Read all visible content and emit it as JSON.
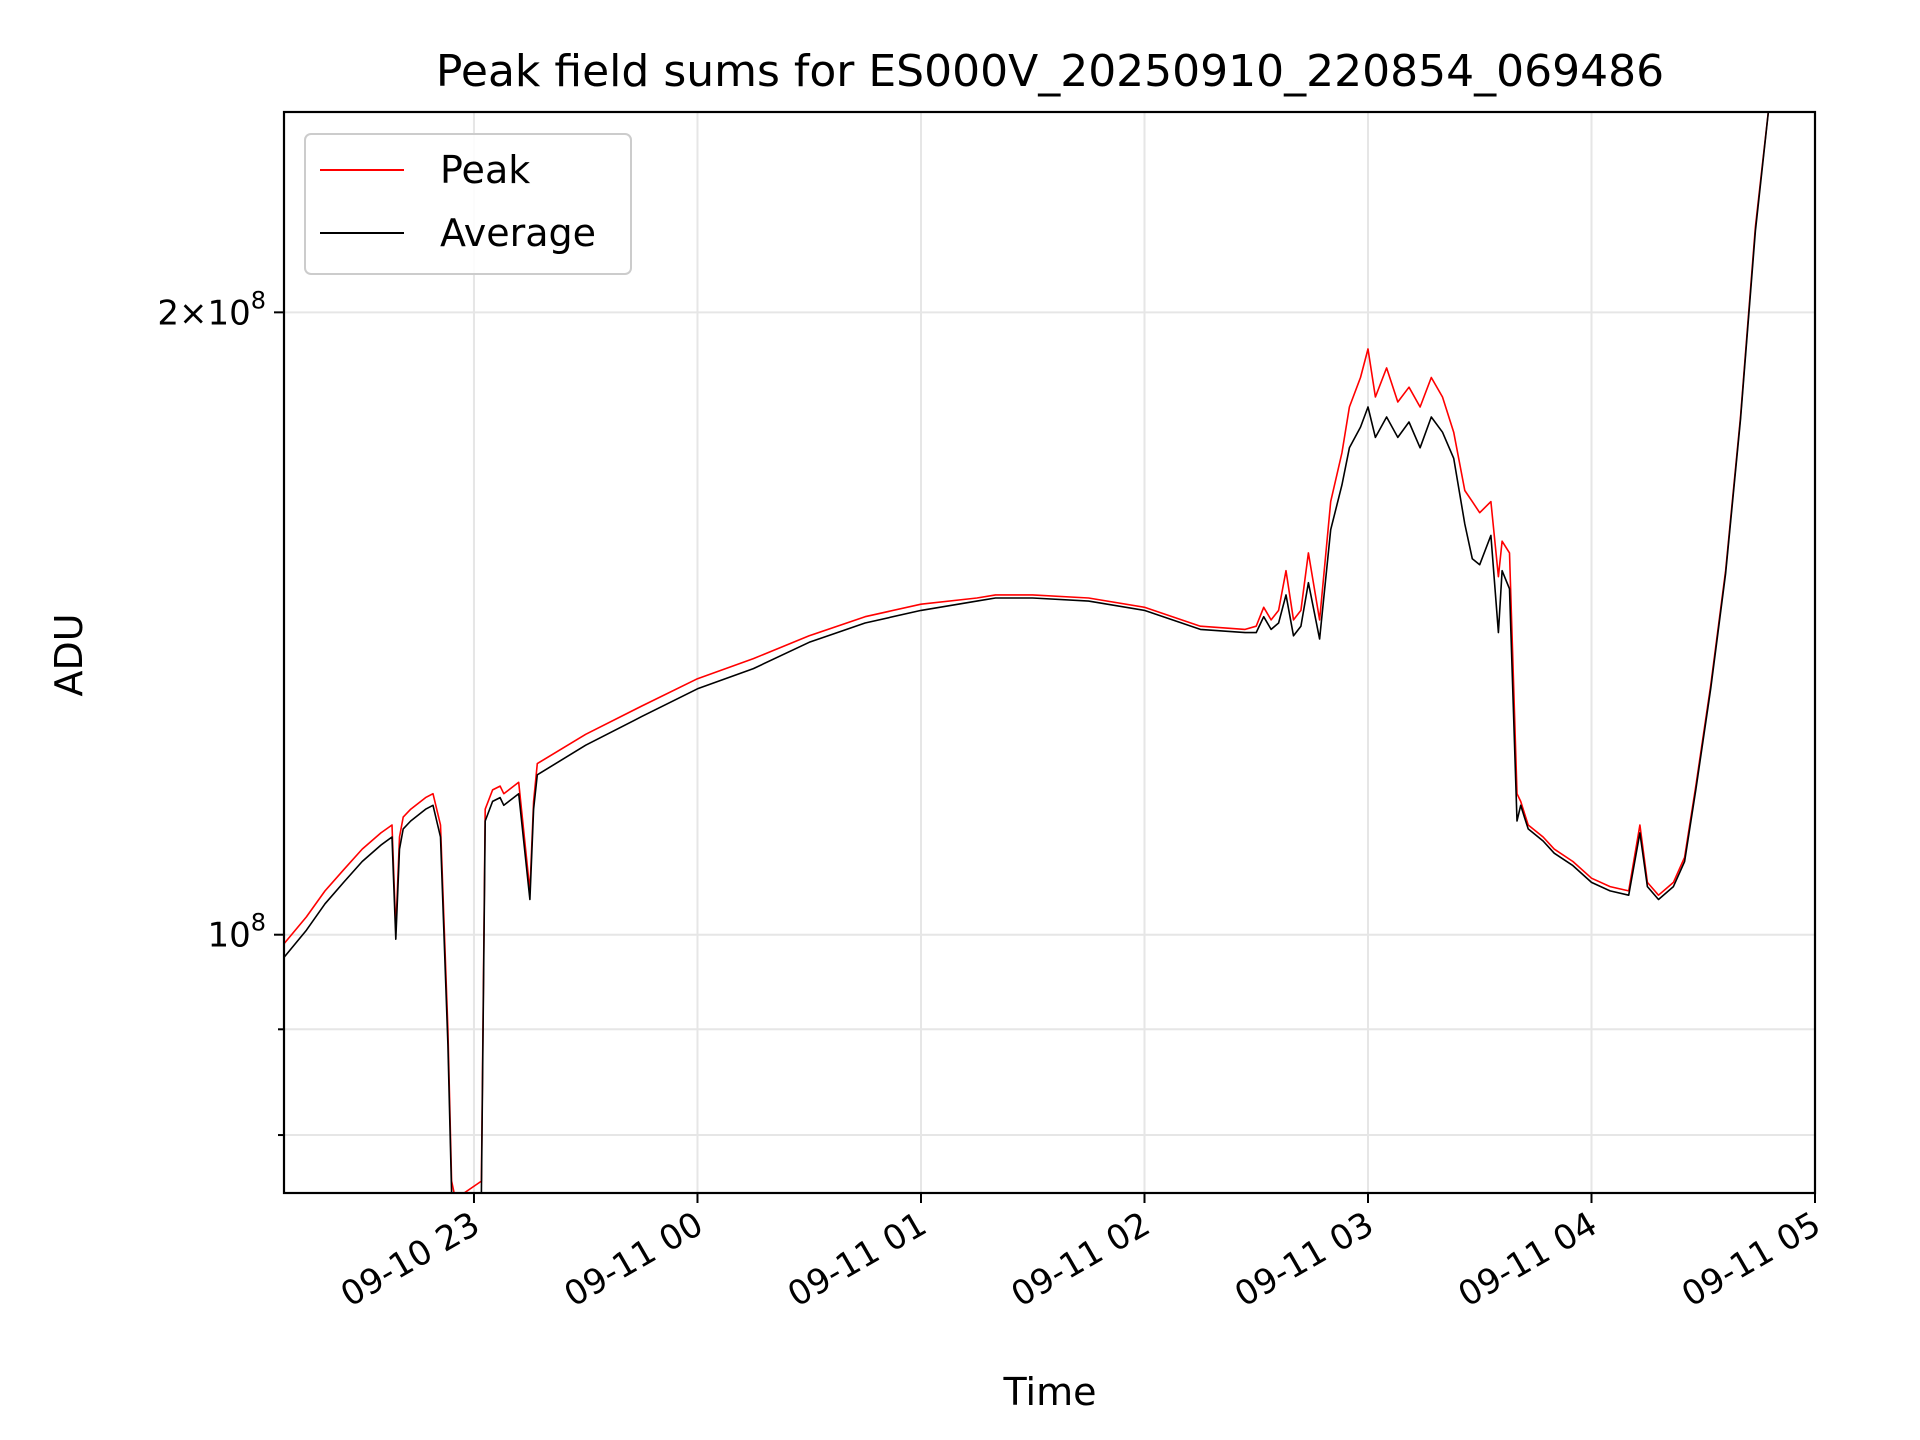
{
  "chart_data": {
    "type": "line",
    "title": "Peak field sums for ES000V_20250910_220854_069486",
    "xlabel": "Time",
    "ylabel": "ADU",
    "x_axis_type": "datetime",
    "xlim": [
      "2025-09-10 22:09",
      "2025-09-11 05:00"
    ],
    "ylim": [
      75000000,
      250000000
    ],
    "yscale": "log",
    "grid": true,
    "legend_position": "top-left",
    "x_ticks": [
      "09-10 23",
      "09-11 00",
      "09-11 01",
      "09-11 02",
      "09-11 03",
      "09-11 04",
      "09-11 05"
    ],
    "y_tick_labels": [
      {
        "value": 200000000,
        "mantissa": "2",
        "exponent": "8"
      },
      {
        "value": 100000000,
        "mantissa": "",
        "exponent": "8"
      }
    ],
    "series": [
      {
        "name": "Peak",
        "color": "#ff0000",
        "x": [
          "2025-09-10 22:09",
          "2025-09-10 22:15",
          "2025-09-10 22:20",
          "2025-09-10 22:25",
          "2025-09-10 22:30",
          "2025-09-10 22:35",
          "2025-09-10 22:38",
          "2025-09-10 22:39",
          "2025-09-10 22:40",
          "2025-09-10 22:41",
          "2025-09-10 22:43",
          "2025-09-10 22:47",
          "2025-09-10 22:49",
          "2025-09-10 22:51",
          "2025-09-10 22:53",
          "2025-09-10 22:54",
          "2025-09-10 22:55",
          "2025-09-10 23:02",
          "2025-09-10 23:03",
          "2025-09-10 23:05",
          "2025-09-10 23:07",
          "2025-09-10 23:08",
          "2025-09-10 23:12",
          "2025-09-10 23:15",
          "2025-09-10 23:16",
          "2025-09-10 23:17",
          "2025-09-10 23:30",
          "2025-09-10 23:45",
          "2025-09-11 00:00",
          "2025-09-11 00:15",
          "2025-09-11 00:30",
          "2025-09-11 00:45",
          "2025-09-11 01:00",
          "2025-09-11 01:15",
          "2025-09-11 01:20",
          "2025-09-11 01:30",
          "2025-09-11 01:45",
          "2025-09-11 02:00",
          "2025-09-11 02:15",
          "2025-09-11 02:27",
          "2025-09-11 02:30",
          "2025-09-11 02:32",
          "2025-09-11 02:34",
          "2025-09-11 02:36",
          "2025-09-11 02:38",
          "2025-09-11 02:40",
          "2025-09-11 02:42",
          "2025-09-11 02:44",
          "2025-09-11 02:47",
          "2025-09-11 02:50",
          "2025-09-11 02:53",
          "2025-09-11 02:55",
          "2025-09-11 02:58",
          "2025-09-11 03:00",
          "2025-09-11 03:02",
          "2025-09-11 03:05",
          "2025-09-11 03:08",
          "2025-09-11 03:11",
          "2025-09-11 03:14",
          "2025-09-11 03:17",
          "2025-09-11 03:20",
          "2025-09-11 03:23",
          "2025-09-11 03:26",
          "2025-09-11 03:28",
          "2025-09-11 03:30",
          "2025-09-11 03:33",
          "2025-09-11 03:35",
          "2025-09-11 03:36",
          "2025-09-11 03:38",
          "2025-09-11 03:40",
          "2025-09-11 03:41",
          "2025-09-11 03:42",
          "2025-09-11 03:43",
          "2025-09-11 03:47",
          "2025-09-11 03:50",
          "2025-09-11 03:55",
          "2025-09-11 04:00",
          "2025-09-11 04:05",
          "2025-09-11 04:10",
          "2025-09-11 04:13",
          "2025-09-11 04:15",
          "2025-09-11 04:16",
          "2025-09-11 04:18",
          "2025-09-11 04:22",
          "2025-09-11 04:25",
          "2025-09-11 04:28",
          "2025-09-11 04:32",
          "2025-09-11 04:36",
          "2025-09-11 04:40",
          "2025-09-11 04:44",
          "2025-09-11 04:48"
        ],
        "values": [
          99000000,
          102000000,
          105000000,
          107500000,
          110000000,
          112000000,
          113000000,
          100500000,
          111500000,
          114000000,
          115000000,
          116500000,
          117000000,
          113000000,
          90000000,
          76000000,
          74500000,
          76000000,
          115000000,
          117500000,
          118000000,
          117000000,
          118500000,
          105000000,
          116000000,
          121000000,
          125000000,
          129000000,
          133000000,
          136000000,
          139500000,
          142500000,
          144500000,
          145500000,
          146000000,
          146000000,
          145500000,
          144000000,
          141000000,
          140500000,
          141000000,
          144000000,
          142000000,
          143500000,
          150000000,
          142000000,
          143500000,
          153000000,
          142000000,
          162000000,
          171000000,
          180000000,
          186000000,
          192000000,
          182000000,
          188000000,
          181000000,
          184000000,
          180000000,
          186000000,
          182000000,
          175000000,
          164000000,
          162000000,
          160000000,
          162000000,
          149000000,
          155000000,
          153000000,
          117000000,
          116000000,
          114500000,
          113000000,
          111500000,
          110000000,
          108500000,
          106500000,
          105500000,
          105000000,
          113000000,
          106000000,
          105500000,
          104500000,
          106000000,
          109000000,
          118000000,
          132000000,
          150000000,
          178000000,
          220000000,
          255000000
        ]
      },
      {
        "name": "Average",
        "color": "#000000",
        "x": [
          "2025-09-10 22:09",
          "2025-09-10 22:15",
          "2025-09-10 22:20",
          "2025-09-10 22:25",
          "2025-09-10 22:30",
          "2025-09-10 22:35",
          "2025-09-10 22:38",
          "2025-09-10 22:39",
          "2025-09-10 22:40",
          "2025-09-10 22:41",
          "2025-09-10 22:43",
          "2025-09-10 22:47",
          "2025-09-10 22:49",
          "2025-09-10 22:51",
          "2025-09-10 22:53",
          "2025-09-10 22:54",
          "2025-09-10 22:55",
          "2025-09-10 23:02",
          "2025-09-10 23:03",
          "2025-09-10 23:05",
          "2025-09-10 23:07",
          "2025-09-10 23:08",
          "2025-09-10 23:12",
          "2025-09-10 23:15",
          "2025-09-10 23:16",
          "2025-09-10 23:17",
          "2025-09-10 23:30",
          "2025-09-10 23:45",
          "2025-09-11 00:00",
          "2025-09-11 00:15",
          "2025-09-11 00:30",
          "2025-09-11 00:45",
          "2025-09-11 01:00",
          "2025-09-11 01:15",
          "2025-09-11 01:20",
          "2025-09-11 01:30",
          "2025-09-11 01:45",
          "2025-09-11 02:00",
          "2025-09-11 02:15",
          "2025-09-11 02:27",
          "2025-09-11 02:30",
          "2025-09-11 02:32",
          "2025-09-11 02:34",
          "2025-09-11 02:36",
          "2025-09-11 02:38",
          "2025-09-11 02:40",
          "2025-09-11 02:42",
          "2025-09-11 02:44",
          "2025-09-11 02:47",
          "2025-09-11 02:50",
          "2025-09-11 02:53",
          "2025-09-11 02:55",
          "2025-09-11 02:58",
          "2025-09-11 03:00",
          "2025-09-11 03:02",
          "2025-09-11 03:05",
          "2025-09-11 03:08",
          "2025-09-11 03:11",
          "2025-09-11 03:14",
          "2025-09-11 03:17",
          "2025-09-11 03:20",
          "2025-09-11 03:23",
          "2025-09-11 03:26",
          "2025-09-11 03:28",
          "2025-09-11 03:30",
          "2025-09-11 03:33",
          "2025-09-11 03:35",
          "2025-09-11 03:36",
          "2025-09-11 03:38",
          "2025-09-11 03:40",
          "2025-09-11 03:41",
          "2025-09-11 03:42",
          "2025-09-11 03:43",
          "2025-09-11 03:47",
          "2025-09-11 03:50",
          "2025-09-11 03:55",
          "2025-09-11 04:00",
          "2025-09-11 04:05",
          "2025-09-11 04:10",
          "2025-09-11 04:13",
          "2025-09-11 04:15",
          "2025-09-11 04:16",
          "2025-09-11 04:18",
          "2025-09-11 04:22",
          "2025-09-11 04:25",
          "2025-09-11 04:28",
          "2025-09-11 04:32",
          "2025-09-11 04:36",
          "2025-09-11 04:40",
          "2025-09-11 04:44",
          "2025-09-11 04:48"
        ],
        "values": [
          97500000,
          100500000,
          103500000,
          106000000,
          108500000,
          110500000,
          111500000,
          99500000,
          110000000,
          112500000,
          113500000,
          115000000,
          115500000,
          111500000,
          88500000,
          75000000,
          74000000,
          75000000,
          113500000,
          116000000,
          116500000,
          115500000,
          117000000,
          104000000,
          115000000,
          119500000,
          123500000,
          127500000,
          131500000,
          134500000,
          138500000,
          141500000,
          143500000,
          145000000,
          145500000,
          145500000,
          145000000,
          143500000,
          140500000,
          140000000,
          140000000,
          142500000,
          140500000,
          141500000,
          146000000,
          139500000,
          141000000,
          148000000,
          139000000,
          157000000,
          165000000,
          172000000,
          176000000,
          180000000,
          174000000,
          178000000,
          174000000,
          177000000,
          172000000,
          178000000,
          175000000,
          170000000,
          158000000,
          152000000,
          151000000,
          156000000,
          140000000,
          150000000,
          147000000,
          113500000,
          115500000,
          114000000,
          112500000,
          111000000,
          109500000,
          108000000,
          106000000,
          105000000,
          104500000,
          112000000,
          105500000,
          105000000,
          104000000,
          105500000,
          108500000,
          117500000,
          131500000,
          149500000,
          177500000,
          219000000,
          255000000
        ]
      }
    ]
  }
}
